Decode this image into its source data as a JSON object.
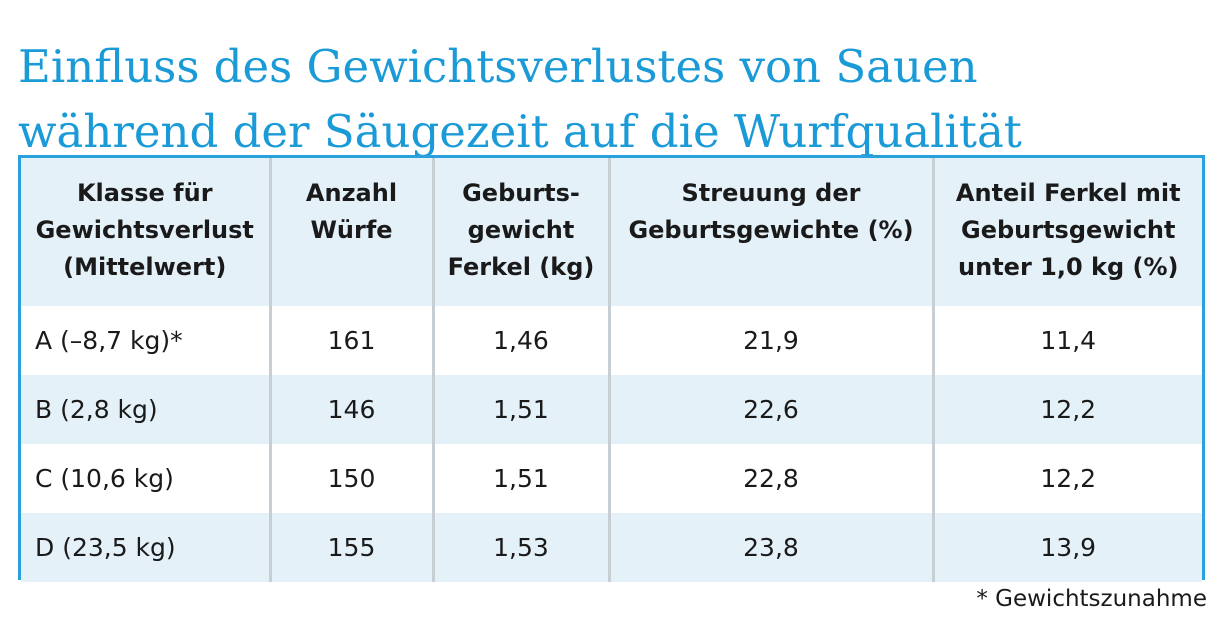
{
  "title_lines": [
    "Einfluss des Gewichtsverlustes von Sauen",
    "während der Säugezeit auf die Wurfqualität"
  ],
  "table": {
    "headers": [
      [
        "Klasse für",
        "Gewichtsverlust",
        "(Mittelwert)"
      ],
      [
        "Anzahl",
        "Würfe"
      ],
      [
        "Geburts-",
        "gewicht",
        "Ferkel (kg)"
      ],
      [
        "Streuung der",
        "Geburtsgewichte (%)"
      ],
      [
        "Anteil Ferkel mit",
        "Geburtsgewicht",
        "unter 1,0 kg (%)"
      ]
    ],
    "rows": [
      [
        "A (–8,7 kg)*",
        "161",
        "1,46",
        "21,9",
        "11,4"
      ],
      [
        "B (2,8 kg)",
        "146",
        "1,51",
        "22,6",
        "12,2"
      ],
      [
        "C (10,6 kg)",
        "150",
        "1,51",
        "22,8",
        "12,2"
      ],
      [
        "D (23,5 kg)",
        "155",
        "1,53",
        "23,8",
        "13,9"
      ]
    ]
  },
  "footnote": "* Gewichtszunahme",
  "colors": {
    "title": "#1a9ad6",
    "table_border": "#2aa0dc",
    "header_bg": "#e4f1f9",
    "alt_row_bg": "#e4f1f9",
    "column_divider": "#c8cfd4"
  }
}
